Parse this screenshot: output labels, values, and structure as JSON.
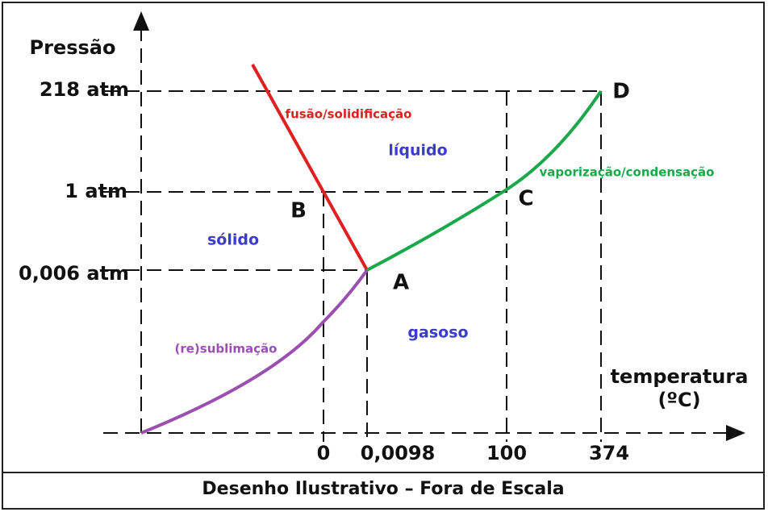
{
  "axes": {
    "y_label": "Pressão",
    "x_label_line1": "temperatura",
    "x_label_line2": "(ºC)",
    "y_ticks": [
      "218 atm",
      "1 atm",
      "0,006 atm"
    ],
    "x_ticks": [
      "0",
      "0,0098",
      "100",
      "374"
    ]
  },
  "points": {
    "A": "A",
    "B": "B",
    "C": "C",
    "D": "D"
  },
  "regions": {
    "liquid": "líquido",
    "solid": "sólido",
    "gas": "gasoso"
  },
  "curves": {
    "fusion": "fusão/solidificação",
    "vaporization": "vaporização/condensação",
    "sublimation": "(re)sublimação"
  },
  "caption": "Desenho Ilustrativo – Fora de Escala"
}
